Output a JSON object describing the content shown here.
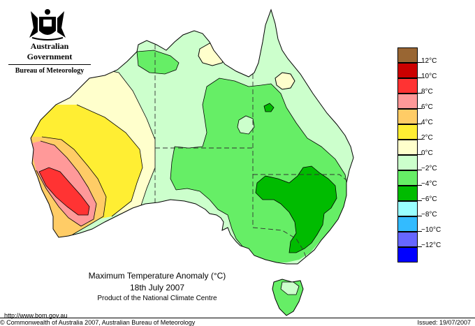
{
  "header": {
    "agency": "Australian Government",
    "bureau": "Bureau of Meteorology"
  },
  "legend": {
    "items": [
      {
        "label": "12°C",
        "color": "#996633"
      },
      {
        "label": "10°C",
        "color": "#cc0000"
      },
      {
        "label": "8°C",
        "color": "#ff3333"
      },
      {
        "label": "6°C",
        "color": "#ff9999"
      },
      {
        "label": "4°C",
        "color": "#ffcc66"
      },
      {
        "label": "2°C",
        "color": "#ffee33"
      },
      {
        "label": "0°C",
        "color": "#ffffcc"
      },
      {
        "label": "−2°C",
        "color": "#ccffcc"
      },
      {
        "label": "−4°C",
        "color": "#66ee66"
      },
      {
        "label": "−6°C",
        "color": "#00bb00"
      },
      {
        "label": "−8°C",
        "color": "#99ffff"
      },
      {
        "label": "−10°C",
        "color": "#33bbff"
      },
      {
        "label": "−12°C",
        "color": "#6666ff"
      },
      {
        "label": "",
        "color": "#0000ff"
      }
    ]
  },
  "caption": {
    "title": "Maximum Temperature Anomaly (°C)",
    "date": "18th July 2007",
    "credit": "Product of the National Climate Centre"
  },
  "footer": {
    "url": "http://www.bom.gov.au",
    "copyright": "© Commonwealth of Australia 2007, Australian Bureau of Meteorology",
    "issued": "Issued: 19/07/2007"
  },
  "map_colors": {
    "coast": "#000000",
    "neg_light": "#ccffcc",
    "neg_mid": "#66ee66",
    "neg_strong": "#00bb00",
    "zero": "#ffffcc",
    "pos2": "#ffee33",
    "pos4": "#ffcc66",
    "pos6": "#ff9999",
    "pos8": "#ff3333"
  }
}
